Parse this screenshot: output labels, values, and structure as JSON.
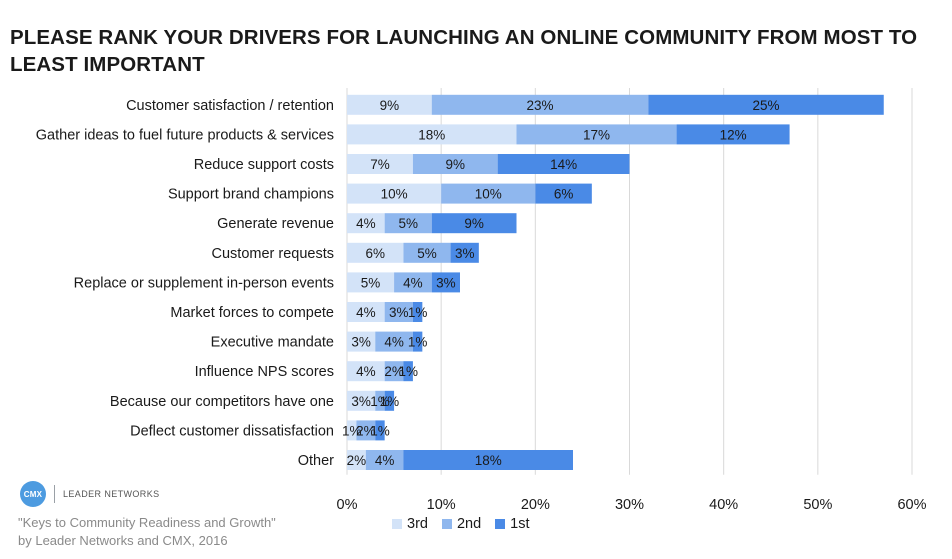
{
  "title": "PLEASE RANK YOUR DRIVERS FOR LAUNCHING AN ONLINE COMMUNITY FROM MOST TO LEAST IMPORTANT",
  "colors": {
    "3rd": "#d3e3f8",
    "2nd": "#8fb7ee",
    "1st": "#4a8ae6",
    "grid": "#d9d9d9"
  },
  "chart_data": {
    "type": "bar",
    "orientation": "horizontal",
    "stacked": true,
    "title": "PLEASE RANK YOUR DRIVERS FOR LAUNCHING AN ONLINE COMMUNITY FROM MOST TO LEAST IMPORTANT",
    "categories": [
      "Customer satisfaction / retention",
      "Gather ideas to fuel future products & services",
      "Reduce support costs",
      "Support brand champions",
      "Generate revenue",
      "Customer requests",
      "Replace or supplement in-person events",
      "Market forces to compete",
      "Executive mandate",
      "Influence NPS scores",
      "Because our competitors have one",
      "Deflect customer dissatisfaction",
      "Other"
    ],
    "series": [
      {
        "name": "3rd",
        "values": [
          9,
          18,
          7,
          10,
          4,
          6,
          5,
          4,
          3,
          4,
          3,
          1,
          2
        ]
      },
      {
        "name": "2nd",
        "values": [
          23,
          17,
          9,
          10,
          5,
          5,
          4,
          3,
          4,
          2,
          1,
          2,
          4
        ]
      },
      {
        "name": "1st",
        "values": [
          25,
          12,
          14,
          6,
          9,
          3,
          3,
          1,
          1,
          1,
          1,
          1,
          18
        ]
      }
    ],
    "xlim": [
      0,
      60
    ],
    "xticks": [
      "0%",
      "10%",
      "20%",
      "30%",
      "40%",
      "50%",
      "60%"
    ],
    "grid": true,
    "legend_position": "bottom"
  },
  "legend": [
    {
      "name": "3rd"
    },
    {
      "name": "2nd"
    },
    {
      "name": "1st"
    }
  ],
  "logo": {
    "badge_text": "CMX",
    "brand_text": "LEADER NETWORKS"
  },
  "source": {
    "line1": "\"Keys to Community Readiness and Growth\"",
    "line2": "by Leader Networks and CMX, 2016"
  }
}
